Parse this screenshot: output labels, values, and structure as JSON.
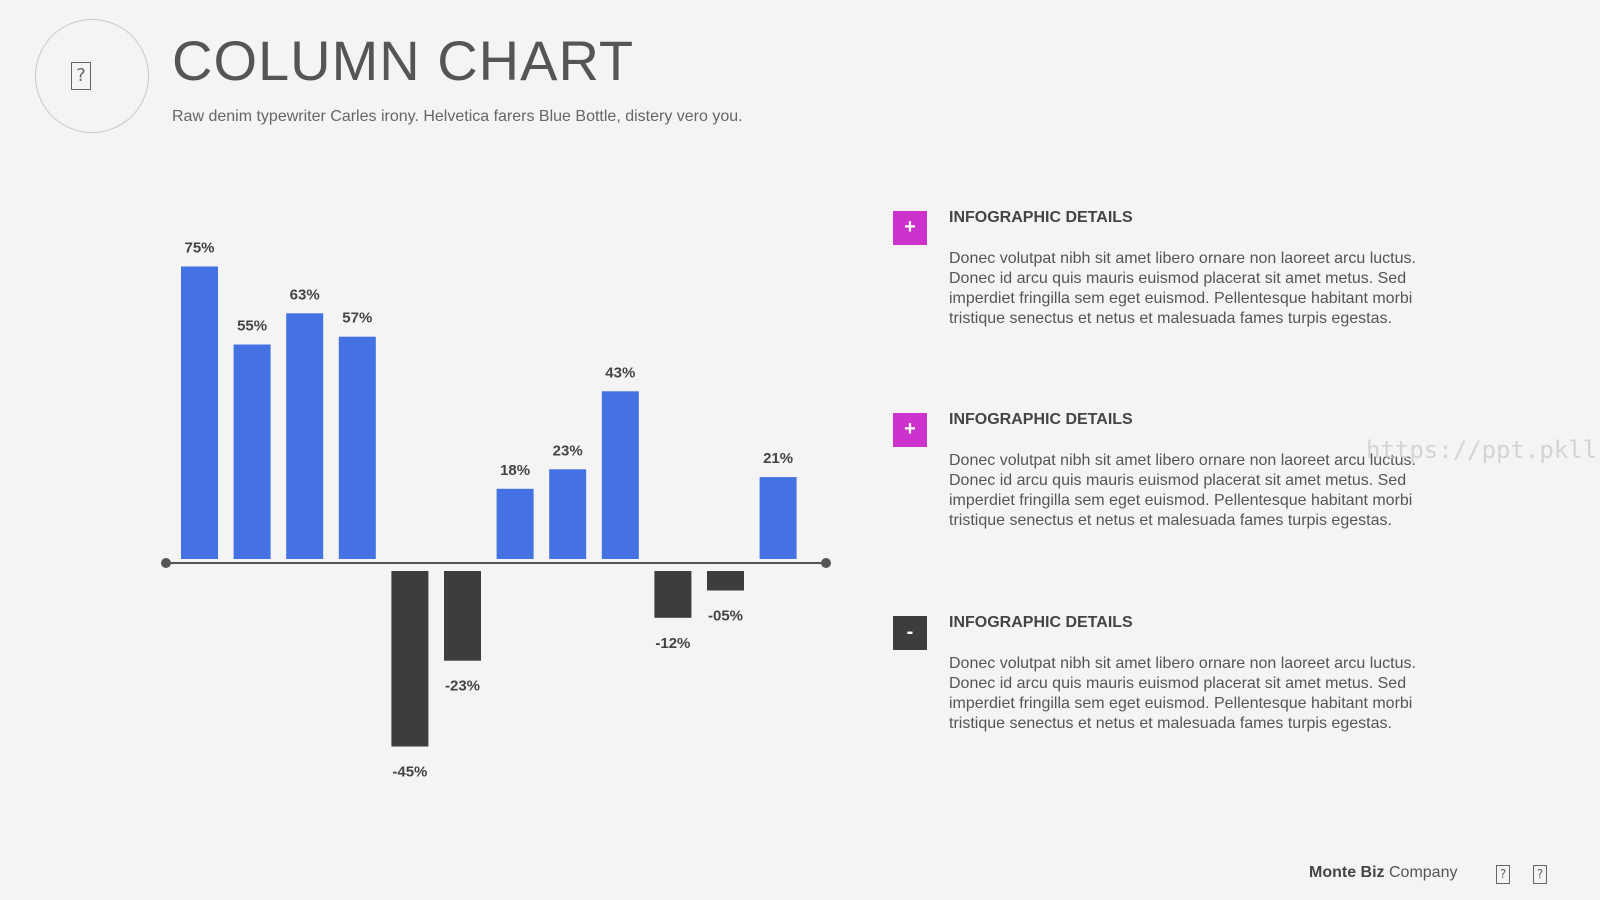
{
  "header": {
    "title": "COLUMN CHART",
    "subtitle": "Raw denim typewriter Carles irony. Helvetica farers Blue Bottle, distery vero you.",
    "logo_icon": "?"
  },
  "chart_data": {
    "type": "bar",
    "values": [
      75,
      55,
      63,
      57,
      -45,
      -23,
      18,
      23,
      43,
      -12,
      -5,
      21
    ],
    "labels": [
      "75%",
      "55%",
      "63%",
      "57%",
      "-45%",
      "-23%",
      "18%",
      "23%",
      "43%",
      "-12%",
      "-05%",
      "21%"
    ],
    "ylim": [
      -50,
      80
    ],
    "grid": false,
    "legend": "none",
    "colors": {
      "positive": "#4472e3",
      "negative": "#3d3d40",
      "axis": "#555555"
    }
  },
  "details": [
    {
      "badge": "+",
      "badge_color": "#cc33cc",
      "title": "INFOGRAPHIC DETAILS",
      "text": "Donec volutpat nibh sit amet libero ornare non laoreet arcu luctus. Donec id arcu quis mauris euismod placerat sit amet metus. Sed imperdiet fringilla sem eget euismod. Pellentesque habitant morbi tristique senectus et netus et malesuada fames turpis egestas."
    },
    {
      "badge": "+",
      "badge_color": "#cc33cc",
      "title": "INFOGRAPHIC DETAILS",
      "text": "Donec volutpat nibh sit amet libero ornare non laoreet arcu luctus. Donec id arcu quis mauris euismod placerat sit amet metus. Sed imperdiet fringilla sem eget euismod. Pellentesque habitant morbi tristique senectus et netus et malesuada fames turpis egestas."
    },
    {
      "badge": "-",
      "badge_color": "#3d3d40",
      "title": "INFOGRAPHIC DETAILS",
      "text": "Donec volutpat nibh sit amet libero ornare non laoreet arcu luctus. Donec id arcu quis mauris euismod placerat sit amet metus. Sed imperdiet fringilla sem eget euismod. Pellentesque habitant morbi tristique senectus et netus et malesuada fames turpis egestas."
    }
  ],
  "watermark": "https://ppt.pkll.de",
  "footer": {
    "brand_bold": "Monte Biz",
    "brand_rest": "Company",
    "icon1": "?",
    "icon2": "?"
  }
}
